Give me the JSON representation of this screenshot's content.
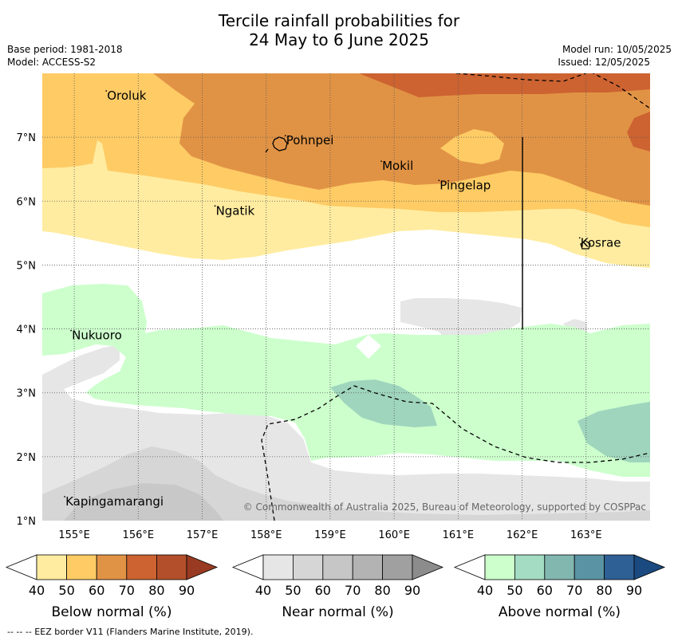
{
  "header": {
    "title_line1": "Tercile rainfall probabilities for",
    "title_line2": "24 May to 6 June 2025",
    "base_period": "Base period: 1981-2018",
    "model": "Model: ACCESS-S2",
    "model_run": "Model run: 10/05/2025",
    "issued": "Issued: 12/05/2025"
  },
  "map": {
    "lon_range": [
      154.5,
      164.0
    ],
    "lat_range": [
      1.0,
      8.0
    ],
    "lon_ticks": [
      "155°E",
      "156°E",
      "157°E",
      "158°E",
      "159°E",
      "160°E",
      "161°E",
      "162°E",
      "163°E"
    ],
    "lat_ticks": [
      "1°N",
      "2°N",
      "3°N",
      "4°N",
      "5°N",
      "6°N",
      "7°N"
    ],
    "places": [
      {
        "name": "Oroluk",
        "lon": 155.5,
        "lat": 7.6
      },
      {
        "name": "Pohnpei",
        "lon": 158.3,
        "lat": 6.9
      },
      {
        "name": "Mokil",
        "lon": 159.8,
        "lat": 6.5
      },
      {
        "name": "Pingelap",
        "lon": 160.7,
        "lat": 6.2
      },
      {
        "name": "Ngatik",
        "lon": 157.2,
        "lat": 5.8
      },
      {
        "name": "Kosrae",
        "lon": 162.9,
        "lat": 5.3
      },
      {
        "name": "Nukuoro",
        "lon": 154.95,
        "lat": 3.85
      },
      {
        "name": "Kapingamarangi",
        "lon": 154.85,
        "lat": 1.25
      }
    ],
    "copyright": "© Commonwealth of Australia 2025, Bureau of Meteorology, supported by COSPPac",
    "colors": {
      "below_50": "#ffeca0",
      "below_60": "#fecb65",
      "below_70": "#e19345",
      "below_80": "#cc6331",
      "near_40": "#e6e6e6",
      "near_50": "#d6d6d6",
      "near_60": "#c8c8c8",
      "above_40": "#ccffcc",
      "above_50": "#9fd5bd"
    }
  },
  "colorbars": [
    {
      "label": "Below normal (%)",
      "ticks": [
        "40",
        "50",
        "60",
        "70",
        "80",
        "90"
      ],
      "colors": [
        "#ffffff",
        "#ffeca0",
        "#fecb65",
        "#e19345",
        "#cc6331",
        "#b34f2a",
        "#983b22"
      ]
    },
    {
      "label": "Near normal (%)",
      "ticks": [
        "40",
        "50",
        "60",
        "70",
        "80",
        "90"
      ],
      "colors": [
        "#ffffff",
        "#e6e6e6",
        "#d6d6d6",
        "#c6c6c6",
        "#b3b3b3",
        "#a0a0a0",
        "#8c8c8c"
      ]
    },
    {
      "label": "Above normal (%)",
      "ticks": [
        "40",
        "50",
        "60",
        "70",
        "80",
        "90"
      ],
      "colors": [
        "#ffffff",
        "#ccffcc",
        "#a3dcc2",
        "#82b7b0",
        "#5a93a4",
        "#2e6095",
        "#1a4a80"
      ]
    }
  ],
  "footnote": "--  --  -- EEZ border V11 (Flanders Marine Institute, 2019)."
}
